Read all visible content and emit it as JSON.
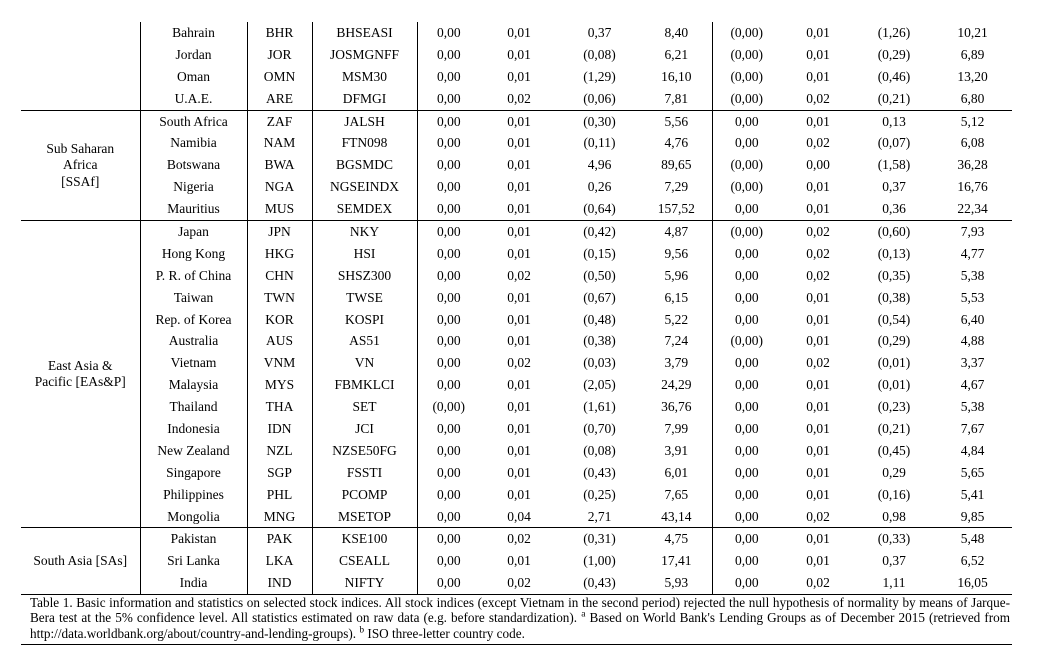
{
  "page": {
    "background": "#ffffff",
    "text_color": "#000000",
    "rule_color": "#000000"
  },
  "table": {
    "groups": [
      {
        "region_lines": [],
        "rows": [
          [
            "Bahrain",
            "BHR",
            "BHSEASI",
            "0,00",
            "0,01",
            "0,37",
            "8,40",
            "(0,00)",
            "0,01",
            "(1,26)",
            "10,21"
          ],
          [
            "Jordan",
            "JOR",
            "JOSMGNFF",
            "0,00",
            "0,01",
            "(0,08)",
            "6,21",
            "(0,00)",
            "0,01",
            "(0,29)",
            "6,89"
          ],
          [
            "Oman",
            "OMN",
            "MSM30",
            "0,00",
            "0,01",
            "(1,29)",
            "16,10",
            "(0,00)",
            "0,01",
            "(0,46)",
            "13,20"
          ],
          [
            "U.A.E.",
            "ARE",
            "DFMGI",
            "0,00",
            "0,02",
            "(0,06)",
            "7,81",
            "(0,00)",
            "0,02",
            "(0,21)",
            "6,80"
          ]
        ]
      },
      {
        "region_lines": [
          "Sub Saharan",
          "Africa",
          "[SSAf]"
        ],
        "rows": [
          [
            "South Africa",
            "ZAF",
            "JALSH",
            "0,00",
            "0,01",
            "(0,30)",
            "5,56",
            "0,00",
            "0,01",
            "0,13",
            "5,12"
          ],
          [
            "Namibia",
            "NAM",
            "FTN098",
            "0,00",
            "0,01",
            "(0,11)",
            "4,76",
            "0,00",
            "0,02",
            "(0,07)",
            "6,08"
          ],
          [
            "Botswana",
            "BWA",
            "BGSMDC",
            "0,00",
            "0,01",
            "4,96",
            "89,65",
            "(0,00)",
            "0,00",
            "(1,58)",
            "36,28"
          ],
          [
            "Nigeria",
            "NGA",
            "NGSEINDX",
            "0,00",
            "0,01",
            "0,26",
            "7,29",
            "(0,00)",
            "0,01",
            "0,37",
            "16,76"
          ],
          [
            "Mauritius",
            "MUS",
            "SEMDEX",
            "0,00",
            "0,01",
            "(0,64)",
            "157,52",
            "0,00",
            "0,01",
            "0,36",
            "22,34"
          ]
        ]
      },
      {
        "region_lines": [
          "East Asia &",
          "Pacific [EAs&P]"
        ],
        "rows": [
          [
            "Japan",
            "JPN",
            "NKY",
            "0,00",
            "0,01",
            "(0,42)",
            "4,87",
            "(0,00)",
            "0,02",
            "(0,60)",
            "7,93"
          ],
          [
            "Hong Kong",
            "HKG",
            "HSI",
            "0,00",
            "0,01",
            "(0,15)",
            "9,56",
            "0,00",
            "0,02",
            "(0,13)",
            "4,77"
          ],
          [
            "P. R. of China",
            "CHN",
            "SHSZ300",
            "0,00",
            "0,02",
            "(0,50)",
            "5,96",
            "0,00",
            "0,02",
            "(0,35)",
            "5,38"
          ],
          [
            "Taiwan",
            "TWN",
            "TWSE",
            "0,00",
            "0,01",
            "(0,67)",
            "6,15",
            "0,00",
            "0,01",
            "(0,38)",
            "5,53"
          ],
          [
            "Rep. of Korea",
            "KOR",
            "KOSPI",
            "0,00",
            "0,01",
            "(0,48)",
            "5,22",
            "0,00",
            "0,01",
            "(0,54)",
            "6,40"
          ],
          [
            "Australia",
            "AUS",
            "AS51",
            "0,00",
            "0,01",
            "(0,38)",
            "7,24",
            "(0,00)",
            "0,01",
            "(0,29)",
            "4,88"
          ],
          [
            "Vietnam",
            "VNM",
            "VN",
            "0,00",
            "0,02",
            "(0,03)",
            "3,79",
            "0,00",
            "0,02",
            "(0,01)",
            "3,37"
          ],
          [
            "Malaysia",
            "MYS",
            "FBMKLCI",
            "0,00",
            "0,01",
            "(2,05)",
            "24,29",
            "0,00",
            "0,01",
            "(0,01)",
            "4,67"
          ],
          [
            "Thailand",
            "THA",
            "SET",
            "(0,00)",
            "0,01",
            "(1,61)",
            "36,76",
            "0,00",
            "0,01",
            "(0,23)",
            "5,38"
          ],
          [
            "Indonesia",
            "IDN",
            "JCI",
            "0,00",
            "0,01",
            "(0,70)",
            "7,99",
            "0,00",
            "0,01",
            "(0,21)",
            "7,67"
          ],
          [
            "New Zealand",
            "NZL",
            "NZSE50FG",
            "0,00",
            "0,01",
            "(0,08)",
            "3,91",
            "0,00",
            "0,01",
            "(0,45)",
            "4,84"
          ],
          [
            "Singapore",
            "SGP",
            "FSSTI",
            "0,00",
            "0,01",
            "(0,43)",
            "6,01",
            "0,00",
            "0,01",
            "0,29",
            "5,65"
          ],
          [
            "Philippines",
            "PHL",
            "PCOMP",
            "0,00",
            "0,01",
            "(0,25)",
            "7,65",
            "0,00",
            "0,01",
            "(0,16)",
            "5,41"
          ],
          [
            "Mongolia",
            "MNG",
            "MSETOP",
            "0,00",
            "0,04",
            "2,71",
            "43,14",
            "0,00",
            "0,02",
            "0,98",
            "9,85"
          ]
        ]
      },
      {
        "region_lines": [
          "South Asia [SAs]"
        ],
        "rows": [
          [
            "Pakistan",
            "PAK",
            "KSE100",
            "0,00",
            "0,02",
            "(0,31)",
            "4,75",
            "0,00",
            "0,01",
            "(0,33)",
            "5,48"
          ],
          [
            "Sri Lanka",
            "LKA",
            "CSEALL",
            "0,00",
            "0,01",
            "(1,00)",
            "17,41",
            "0,00",
            "0,01",
            "0,37",
            "6,52"
          ],
          [
            "India",
            "IND",
            "NIFTY",
            "0,00",
            "0,02",
            "(0,43)",
            "5,93",
            "0,00",
            "0,02",
            "1,11",
            "16,05"
          ]
        ]
      }
    ]
  },
  "caption": {
    "part1": "Table 1. Basic information and statistics on selected stock indices. All stock indices (except Vietnam in the second period) rejected the null hypothesis of normality by means of Jarque-Bera test at the 5% confidence level. All statistics estimated on raw data (e.g. before standardization). ",
    "sup_a": "a",
    "part2": " Based on World Bank's Lending Groups as of December 2015 (retrieved from http://data.worldbank.org/about/country-and-lending-groups). ",
    "sup_b": "b",
    "part3": " ISO three-letter country code."
  }
}
